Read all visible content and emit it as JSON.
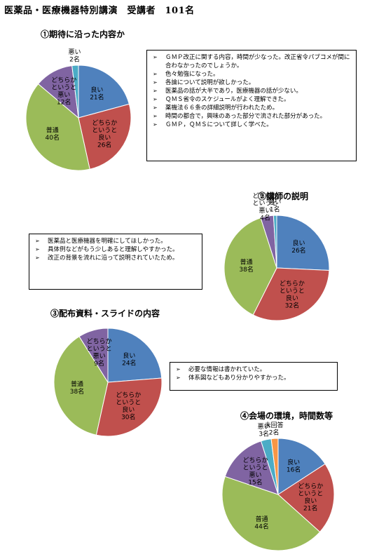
{
  "page": {
    "title": "医薬品・医療機器特別講演　受講者　101名"
  },
  "chart_data": [
    {
      "type": "pie",
      "title": "①期待に沿った内容か",
      "slices": [
        {
          "name": "良い",
          "value": 21,
          "label": "21名",
          "color": "#4f81bd"
        },
        {
          "name": "どちらかというと良い",
          "value": 26,
          "label": "26名",
          "color": "#c0504d"
        },
        {
          "name": "普通",
          "value": 40,
          "label": "40名",
          "color": "#9bbb59"
        },
        {
          "name": "どちらかというと悪い",
          "value": 12,
          "label": "12名",
          "color": "#8064a2"
        },
        {
          "name": "悪い",
          "value": 2,
          "label": "2名",
          "color": "#4bacc6"
        }
      ]
    },
    {
      "type": "pie",
      "title": "②講師の説明",
      "slices": [
        {
          "name": "良い",
          "value": 26,
          "label": "26名",
          "color": "#4f81bd"
        },
        {
          "name": "どちらかというと良い",
          "value": 32,
          "label": "32名",
          "color": "#c0504d"
        },
        {
          "name": "普通",
          "value": 38,
          "label": "38名",
          "color": "#9bbb59"
        },
        {
          "name": "どちらかというと悪い",
          "value": 4,
          "label": "4名",
          "color": "#8064a2"
        },
        {
          "name": "悪い",
          "value": 1,
          "label": "1名",
          "color": "#4bacc6"
        }
      ]
    },
    {
      "type": "pie",
      "title": "③配布資料・スライドの内容",
      "slices": [
        {
          "name": "良い",
          "value": 24,
          "label": "24名",
          "color": "#4f81bd"
        },
        {
          "name": "どちらかというと良い",
          "value": 30,
          "label": "30名",
          "color": "#c0504d"
        },
        {
          "name": "普通",
          "value": 38,
          "label": "38名",
          "color": "#9bbb59"
        },
        {
          "name": "どちらかというと悪い",
          "value": 9,
          "label": "9名",
          "color": "#8064a2"
        }
      ]
    },
    {
      "type": "pie",
      "title": "④会場の環境，時間数等",
      "slices": [
        {
          "name": "良い",
          "value": 16,
          "label": "16名",
          "color": "#4f81bd"
        },
        {
          "name": "どちらかというと良い",
          "value": 21,
          "label": "21名",
          "color": "#c0504d"
        },
        {
          "name": "普通",
          "value": 44,
          "label": "44名",
          "color": "#9bbb59"
        },
        {
          "name": "どちらかというと悪い",
          "value": 15,
          "label": "15名",
          "color": "#8064a2"
        },
        {
          "name": "悪い",
          "value": 3,
          "label": "3名",
          "color": "#4bacc6"
        },
        {
          "name": "未回答",
          "value": 2,
          "label": "2名",
          "color": "#f79646"
        }
      ]
    }
  ],
  "comments": {
    "c1": [
      "ＧＭＰ改正に関する内容，時間が少なった。改正省令パブコメが間に合わなかったのでしょうか。",
      "色々勉強になった。",
      "各論について説明が欲しかった。",
      "医薬品の話が大半であり，医療機器の話が少ない。",
      "ＱＭＳ省令のスケジュールがよく理解できた。",
      "薬機法６６条の詳細説明が行われたため。",
      "時間の都合で，興味のあった部分で流された部分があった。",
      "ＧＭＰ，ＱＭＳについて詳しく学べた。"
    ],
    "c2": [
      "医薬品と医療機器を明確にしてほしかった。",
      "具体例などがもう少しあると理解しやすかった。",
      "改正の背景を流れに沿って説明されていたため。"
    ],
    "c3": [
      "必要な情報は書かれていた。",
      "体系図などもあり分かりやすかった。"
    ]
  }
}
